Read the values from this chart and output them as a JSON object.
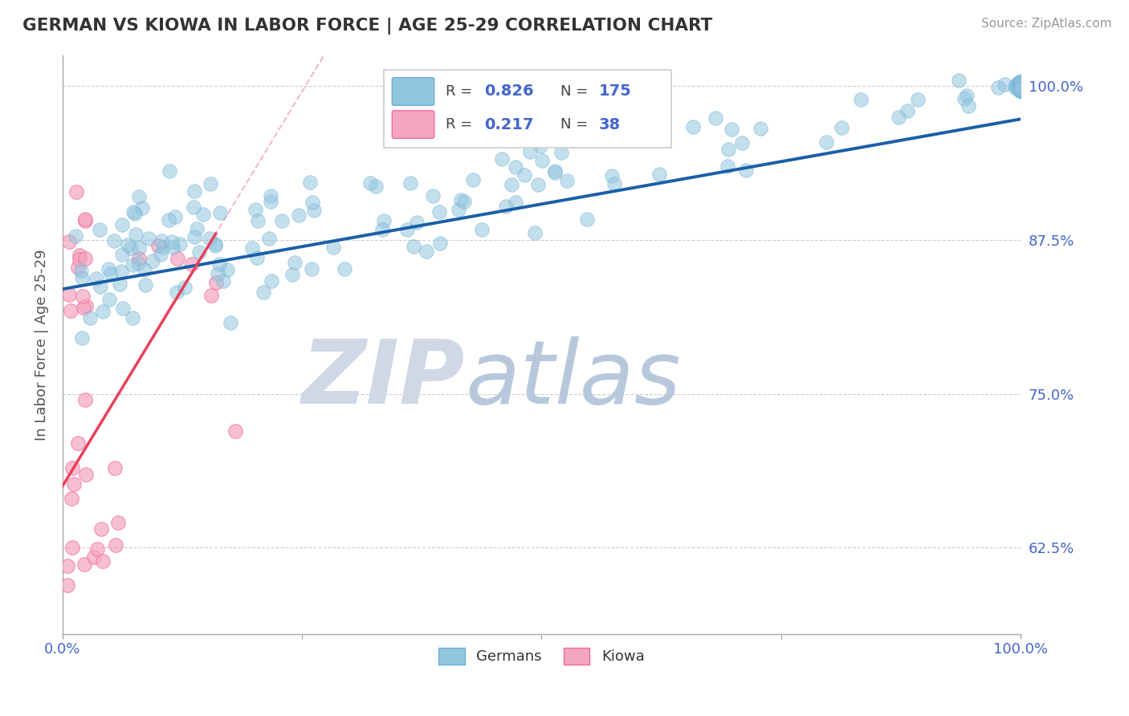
{
  "title": "GERMAN VS KIOWA IN LABOR FORCE | AGE 25-29 CORRELATION CHART",
  "source_text": "Source: ZipAtlas.com",
  "ylabel": "In Labor Force | Age 25-29",
  "xlim": [
    0.0,
    1.0
  ],
  "ylim": [
    0.555,
    1.025
  ],
  "yticks": [
    0.625,
    0.75,
    0.875,
    1.0
  ],
  "ytick_labels": [
    "62.5%",
    "75.0%",
    "87.5%",
    "100.0%"
  ],
  "german_R": 0.826,
  "german_N": 175,
  "kiowa_R": 0.217,
  "kiowa_N": 38,
  "german_color": "#92c5de",
  "german_edge_color": "#6baed6",
  "kiowa_color": "#f4a6be",
  "kiowa_edge_color": "#f768a1",
  "german_line_color": "#1a5fa8",
  "kiowa_line_color": "#e8405a",
  "kiowa_line_dashed_color": "#f4a6be",
  "watermark_zip_color": "#d0d8e8",
  "watermark_atlas_color": "#b0c4d8",
  "background_color": "#ffffff",
  "grid_color": "#cccccc",
  "axis_label_color": "#4466cc",
  "title_color": "#333333",
  "legend_box_color": "#eeeeee",
  "legend_border_color": "#cccccc"
}
